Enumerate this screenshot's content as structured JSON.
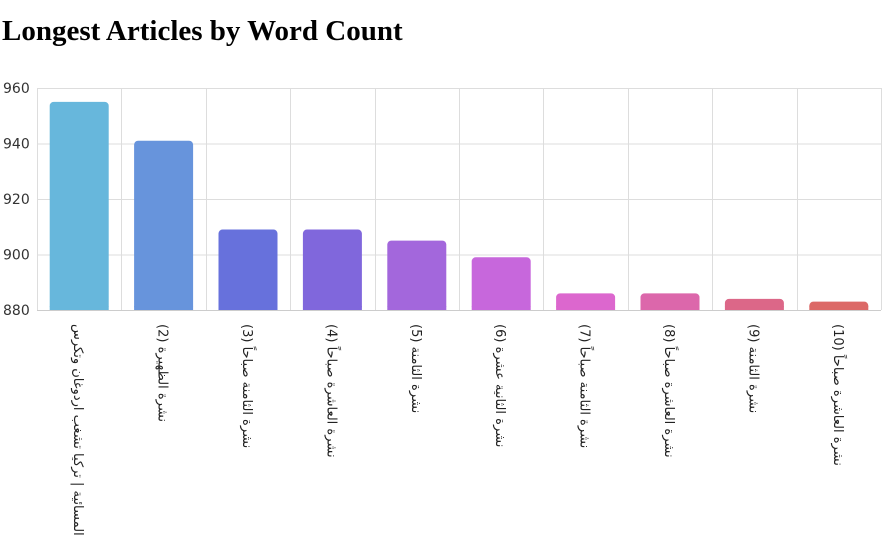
{
  "chart_data": {
    "type": "bar",
    "title": "Longest Articles by Word Count",
    "xlabel": "",
    "ylabel": "",
    "categories": [
      "المسائية | تركيا تشغب اردوغان وتكرس",
      "نشرة الظهيرة (2)",
      "نشرة الثامنة صباحاً (3)",
      "نشرة العاشرة صباحاً (4)",
      "نشرة الثامنة (5)",
      "نشرة الثانية عشرة (6)",
      "نشرة الثامنة صباحاً (7)",
      "نشرة العاشرة صباحاً (8)",
      "نشرة الثامنة (9)",
      "نشرة العاشرة صباحاً (10)"
    ],
    "values": [
      955,
      941,
      909,
      909,
      905,
      899,
      886,
      886,
      884,
      883
    ],
    "ylim": [
      880,
      960
    ],
    "yticks": [
      "880",
      "900",
      "920",
      "940",
      "960"
    ],
    "grid": true,
    "legend": "none",
    "colors": [
      "#67b7dc",
      "#6794dc",
      "#6771dc",
      "#8067dc",
      "#a367dc",
      "#c767dc",
      "#dc67ce",
      "#dc67ab",
      "#dc6788",
      "#dc6967"
    ]
  }
}
